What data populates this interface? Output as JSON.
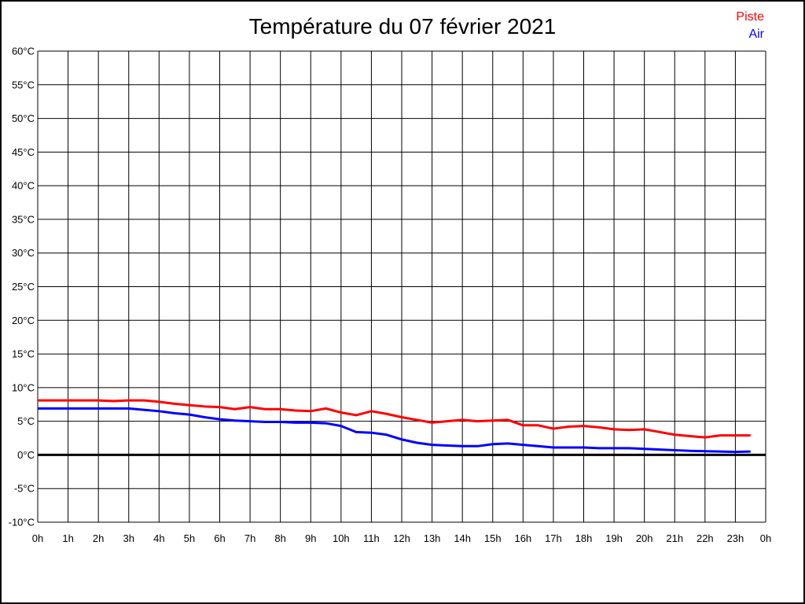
{
  "chart": {
    "title": "Température du 07 février 2021",
    "legend": [
      {
        "label": "Piste",
        "color": "#ff0000"
      },
      {
        "label": "Air",
        "color": "#0000ff"
      }
    ]
  },
  "chart_data": {
    "type": "line",
    "title": "Température du 07 février 2021",
    "xlabel": "",
    "ylabel": "",
    "x_unit": "hours",
    "xlim": [
      0,
      24
    ],
    "ylim": [
      -10,
      60
    ],
    "y_step": 5,
    "grid": true,
    "zero_line_bold": true,
    "legend_position": "top-right",
    "x_tick_labels": [
      "0h",
      "1h",
      "2h",
      "3h",
      "4h",
      "5h",
      "6h",
      "7h",
      "8h",
      "9h",
      "10h",
      "11h",
      "12h",
      "13h",
      "14h",
      "15h",
      "16h",
      "17h",
      "18h",
      "19h",
      "20h",
      "21h",
      "22h",
      "23h",
      "0h"
    ],
    "y_tick_labels": [
      "60°C",
      "55°C",
      "50°C",
      "45°C",
      "40°C",
      "35°C",
      "30°C",
      "25°C",
      "20°C",
      "15°C",
      "10°C",
      "5°C",
      "0°C",
      "-5°C",
      "-10°C"
    ],
    "x": [
      0,
      0.5,
      1,
      1.5,
      2,
      2.5,
      3,
      3.5,
      4,
      4.5,
      5,
      5.5,
      6,
      6.5,
      7,
      7.5,
      8,
      8.5,
      9,
      9.5,
      10,
      10.5,
      11,
      11.5,
      12,
      12.5,
      13,
      13.5,
      14,
      14.5,
      15,
      15.5,
      16,
      16.5,
      17,
      17.5,
      18,
      18.5,
      19,
      19.5,
      20,
      20.5,
      21,
      21.5,
      22,
      22.5,
      23,
      23.5
    ],
    "series": [
      {
        "name": "Piste",
        "color": "#ff0000",
        "values": [
          8.1,
          8.1,
          8.1,
          8.1,
          8.1,
          8.0,
          8.1,
          8.1,
          7.9,
          7.6,
          7.4,
          7.2,
          7.1,
          6.8,
          7.1,
          6.8,
          6.8,
          6.6,
          6.5,
          6.9,
          6.3,
          5.9,
          6.5,
          6.1,
          5.6,
          5.2,
          4.8,
          5.0,
          5.2,
          5.0,
          5.1,
          5.2,
          4.4,
          4.4,
          3.9,
          4.2,
          4.3,
          4.1,
          3.8,
          3.7,
          3.8,
          3.4,
          3.0,
          2.8,
          2.6,
          2.9,
          2.9,
          2.9
        ]
      },
      {
        "name": "Air",
        "color": "#0000ff",
        "values": [
          6.9,
          6.9,
          6.9,
          6.9,
          6.9,
          6.9,
          6.9,
          6.7,
          6.5,
          6.2,
          6.0,
          5.6,
          5.3,
          5.1,
          5.0,
          4.9,
          4.9,
          4.8,
          4.8,
          4.7,
          4.3,
          3.4,
          3.3,
          3.0,
          2.3,
          1.8,
          1.5,
          1.4,
          1.3,
          1.3,
          1.6,
          1.7,
          1.5,
          1.3,
          1.1,
          1.1,
          1.1,
          1.0,
          1.0,
          1.0,
          0.9,
          0.8,
          0.7,
          0.6,
          0.55,
          0.5,
          0.45,
          0.5
        ]
      }
    ]
  }
}
